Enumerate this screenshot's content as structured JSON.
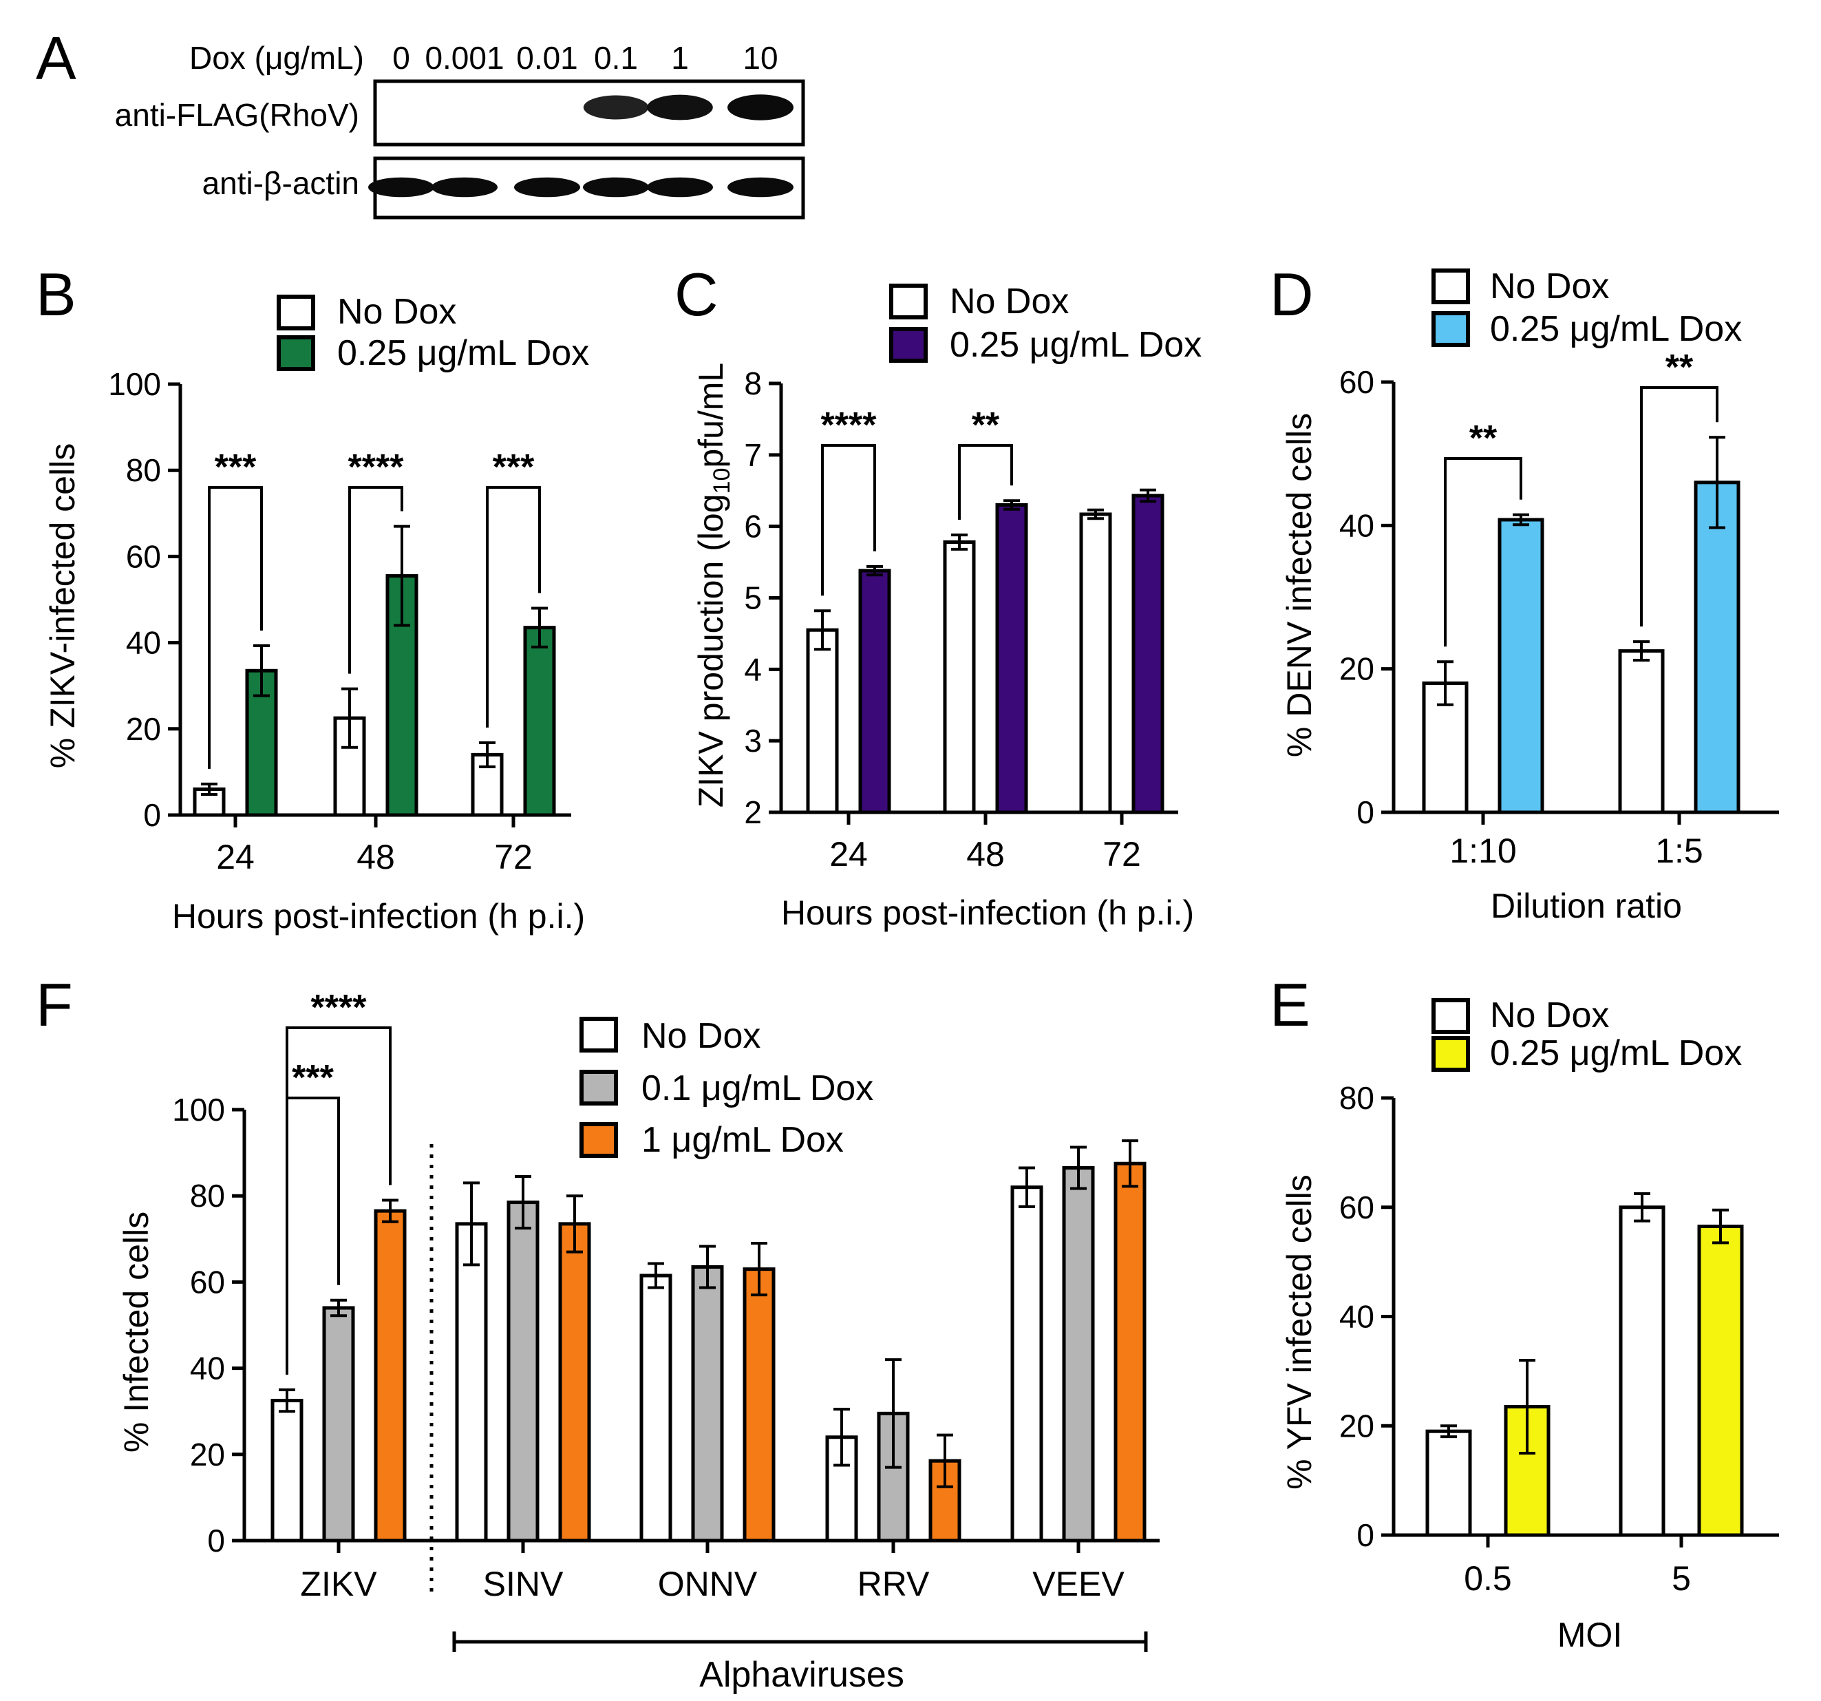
{
  "colors": {
    "black": "#000000",
    "white": "#ffffff",
    "green": "#157a3f",
    "purple": "#3b0a78",
    "blue": "#5bc4f2",
    "gray": "#b5b5b5",
    "orange": "#f47b16",
    "yellow": "#f4f40f",
    "blot_band": "#0b0b0b"
  },
  "panel_a": {
    "letter": "A",
    "dox_header": "Dox (μg/mL)",
    "concentrations": [
      "0",
      "0.001",
      "0.01",
      "0.1",
      "1",
      "10"
    ],
    "rows": [
      {
        "label": "anti-FLAG(RhoV)",
        "band_strength": [
          0,
          0,
          0,
          0.8,
          0.95,
          1.0
        ]
      },
      {
        "label": "anti-β-actin",
        "band_strength": [
          1,
          1,
          1,
          1,
          1,
          1
        ]
      }
    ]
  },
  "chart_data": [
    {
      "panel": "B",
      "type": "bar",
      "categories": [
        "24",
        "48",
        "72"
      ],
      "series": [
        {
          "name": "No Dox",
          "values": [
            6,
            22.5,
            14
          ],
          "errors": [
            1.2,
            6.8,
            2.8
          ],
          "fill": "#ffffff"
        },
        {
          "name": "0.25 μg/mL Dox",
          "values": [
            33.5,
            55.5,
            43.5
          ],
          "errors": [
            5.8,
            11.5,
            4.5
          ],
          "fill": "#157a3f"
        }
      ],
      "ylabel": "% ZIKV-infected cells",
      "xlabel": "Hours post-infection (h p.i.)",
      "ylim": [
        0,
        100
      ],
      "yticks": [
        "0",
        "20",
        "40",
        "60",
        "80",
        "100"
      ],
      "significance": [
        "***",
        "****",
        "***"
      ],
      "legend": "top"
    },
    {
      "panel": "C",
      "type": "bar",
      "categories": [
        "24",
        "48",
        "72"
      ],
      "series": [
        {
          "name": "No Dox",
          "values": [
            4.55,
            5.78,
            6.17
          ],
          "errors": [
            0.27,
            0.1,
            0.06
          ],
          "fill": "#ffffff"
        },
        {
          "name": "0.25 μg/mL Dox",
          "values": [
            5.38,
            6.3,
            6.43
          ],
          "errors": [
            0.06,
            0.06,
            0.08
          ],
          "fill": "#3b0a78"
        }
      ],
      "ylabel_pre": "ZIKV production (log",
      "ylabel_sub": "10",
      "ylabel_post": "pfu/mL",
      "xlabel": "Hours post-infection (h p.i.)",
      "ylim": [
        2,
        8
      ],
      "yticks": [
        "2",
        "3",
        "4",
        "5",
        "6",
        "7",
        "8"
      ],
      "significance": [
        "****",
        "**"
      ],
      "legend": "top"
    },
    {
      "panel": "D",
      "type": "bar",
      "categories": [
        "1:10",
        "1:5"
      ],
      "series": [
        {
          "name": "No Dox",
          "values": [
            18,
            22.5
          ],
          "errors": [
            3,
            1.3
          ],
          "fill": "#ffffff"
        },
        {
          "name": "0.25 μg/mL Dox",
          "values": [
            40.8,
            46
          ],
          "errors": [
            0.7,
            6.3
          ],
          "fill": "#5bc4f2"
        }
      ],
      "ylabel": "% DENV infected cells",
      "xlabel": "Dilution ratio",
      "ylim": [
        0,
        60
      ],
      "yticks": [
        "0",
        "20",
        "40",
        "60"
      ],
      "significance": [
        "**",
        "**"
      ],
      "legend": "top"
    },
    {
      "panel": "F",
      "type": "bar",
      "categories": [
        "ZIKV",
        "SINV",
        "ONNV",
        "RRV",
        "VEEV"
      ],
      "series": [
        {
          "name": "No Dox",
          "values": [
            32.5,
            73.5,
            61.5,
            24,
            82
          ],
          "errors": [
            2.5,
            9.5,
            2.8,
            6.5,
            4.5
          ],
          "fill": "#ffffff"
        },
        {
          "name": "0.1 μg/mL Dox",
          "values": [
            54,
            78.5,
            63.5,
            29.5,
            86.5
          ],
          "errors": [
            1.8,
            6,
            4.8,
            12.5,
            4.8
          ],
          "fill": "#b5b5b5"
        },
        {
          "name": "1 μg/mL Dox",
          "values": [
            76.5,
            73.5,
            63,
            18.5,
            87.5
          ],
          "errors": [
            2.5,
            6.5,
            6,
            6,
            5.3
          ],
          "fill": "#f47b16"
        }
      ],
      "ylabel": "% Infected cells",
      "ylim": [
        0,
        100
      ],
      "yticks": [
        "0",
        "20",
        "40",
        "60",
        "80",
        "100"
      ],
      "significance": [
        "***",
        "****"
      ],
      "group_label": "Alphaviruses",
      "legend": "top-right"
    },
    {
      "panel": "E",
      "type": "bar",
      "categories": [
        "0.5",
        "5"
      ],
      "series": [
        {
          "name": "No Dox",
          "values": [
            19,
            60
          ],
          "errors": [
            1,
            2.5
          ],
          "fill": "#ffffff"
        },
        {
          "name": "0.25 μg/mL Dox",
          "values": [
            23.5,
            56.5
          ],
          "errors": [
            8.5,
            3
          ],
          "fill": "#f4f40f"
        }
      ],
      "ylabel": "% YFV infected cells",
      "xlabel": "MOI",
      "ylim": [
        0,
        80
      ],
      "yticks": [
        "0",
        "20",
        "40",
        "60",
        "80"
      ],
      "legend": "top"
    }
  ]
}
